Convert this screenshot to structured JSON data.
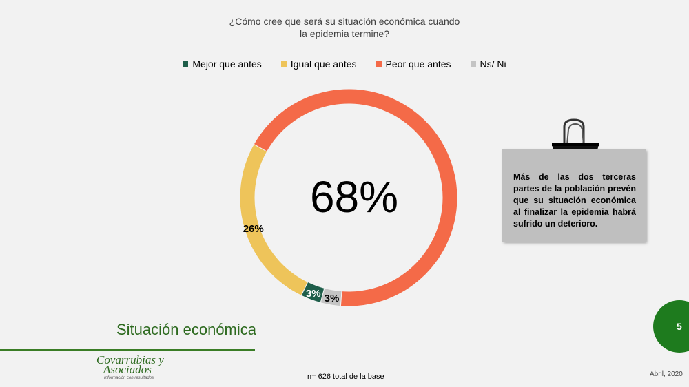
{
  "chart_data": {
    "type": "pie",
    "title": "¿Cómo cree que será su situación económica cuando la epidemia termine?",
    "title_lines": [
      "¿Cómo cree que será su situación económica cuando",
      "la epidemia termine?"
    ],
    "center_label": "68%",
    "legend_position": "top",
    "slices": [
      {
        "name": "Mejor que antes",
        "value": 3,
        "label": "3%",
        "color": "#1e5e4a",
        "label_color": "#ffffff"
      },
      {
        "name": "Igual que antes",
        "value": 26,
        "label": "26%",
        "color": "#eec45a",
        "label_color": "#000000"
      },
      {
        "name": "Peor que antes",
        "value": 68,
        "label": "",
        "color": "#f46a48",
        "label_color": "#000000"
      },
      {
        "name": "Ns/ Ni",
        "value": 3,
        "label": "3%",
        "color": "#c4c4c4",
        "label_color": "#000000"
      }
    ],
    "draw_order": [
      3,
      2,
      1,
      0
    ]
  },
  "note": {
    "text": "Más de las dos terceras partes de la población prevén que su situación económica al finalizar la epidemia habrá sufrido un deterioro."
  },
  "section_title": "Situación económica",
  "page_number": "5",
  "logo": {
    "name_line1": "Covarrubias y",
    "name_line2": "Asociados",
    "tagline": "Información con resultados"
  },
  "footer": {
    "base_note": "n= 626 total de la base",
    "date": "Abril, 2020"
  },
  "colors": {
    "accent_green": "#2d6a1f",
    "badge_green": "#1e7b1e",
    "background": "#f2f2f2"
  }
}
